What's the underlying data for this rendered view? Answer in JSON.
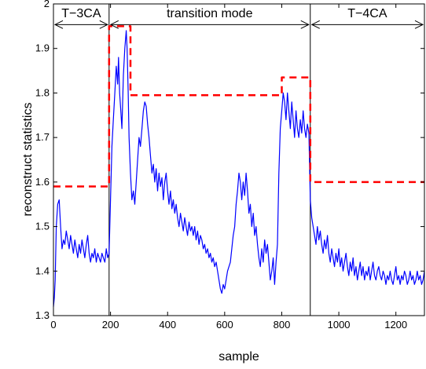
{
  "chart_data": {
    "type": "line",
    "title": "",
    "xlabel": "sample",
    "ylabel": "reconstruct statistics",
    "xlim": [
      0,
      1300
    ],
    "ylim": [
      1.3,
      2.0
    ],
    "xticks": [
      0,
      200,
      400,
      600,
      800,
      1000,
      1200
    ],
    "yticks": [
      1.3,
      1.4,
      1.5,
      1.6,
      1.7,
      1.8,
      1.9,
      2.0
    ],
    "xtick_labels": [
      "0",
      "200",
      "400",
      "600",
      "800",
      "1000",
      "1200"
    ],
    "ytick_labels": [
      "1.3",
      "1.4",
      "1.5",
      "1.6",
      "1.7",
      "1.8",
      "1.9",
      "2"
    ],
    "grid": false,
    "regions": [
      {
        "label": "T−3CA",
        "start": 0,
        "end": 195
      },
      {
        "label": "transition mode",
        "start": 195,
        "end": 900
      },
      {
        "label": "T−4CA",
        "start": 900,
        "end": 1300
      }
    ],
    "region_boundaries": [
      195,
      900
    ],
    "series": [
      {
        "style": "solid",
        "color": "#0000ff",
        "points": [
          [
            0,
            1.32
          ],
          [
            3,
            1.34
          ],
          [
            6,
            1.38
          ],
          [
            10,
            1.5
          ],
          [
            15,
            1.55
          ],
          [
            20,
            1.56
          ],
          [
            25,
            1.5
          ],
          [
            30,
            1.45
          ],
          [
            35,
            1.47
          ],
          [
            40,
            1.46
          ],
          [
            45,
            1.49
          ],
          [
            50,
            1.47
          ],
          [
            55,
            1.45
          ],
          [
            60,
            1.48
          ],
          [
            65,
            1.46
          ],
          [
            70,
            1.44
          ],
          [
            75,
            1.47
          ],
          [
            80,
            1.45
          ],
          [
            85,
            1.43
          ],
          [
            90,
            1.46
          ],
          [
            95,
            1.44
          ],
          [
            100,
            1.47
          ],
          [
            105,
            1.45
          ],
          [
            110,
            1.43
          ],
          [
            115,
            1.46
          ],
          [
            120,
            1.48
          ],
          [
            125,
            1.44
          ],
          [
            130,
            1.42
          ],
          [
            135,
            1.44
          ],
          [
            140,
            1.43
          ],
          [
            145,
            1.45
          ],
          [
            150,
            1.42
          ],
          [
            155,
            1.44
          ],
          [
            160,
            1.43
          ],
          [
            165,
            1.42
          ],
          [
            170,
            1.44
          ],
          [
            175,
            1.43
          ],
          [
            180,
            1.42
          ],
          [
            185,
            1.45
          ],
          [
            190,
            1.43
          ],
          [
            195,
            1.44
          ],
          [
            200,
            1.56
          ],
          [
            205,
            1.68
          ],
          [
            210,
            1.74
          ],
          [
            215,
            1.8
          ],
          [
            220,
            1.86
          ],
          [
            225,
            1.82
          ],
          [
            228,
            1.88
          ],
          [
            232,
            1.8
          ],
          [
            236,
            1.76
          ],
          [
            240,
            1.72
          ],
          [
            245,
            1.84
          ],
          [
            250,
            1.9
          ],
          [
            255,
            1.94
          ],
          [
            258,
            1.9
          ],
          [
            262,
            1.8
          ],
          [
            265,
            1.7
          ],
          [
            270,
            1.62
          ],
          [
            275,
            1.56
          ],
          [
            280,
            1.58
          ],
          [
            285,
            1.55
          ],
          [
            290,
            1.6
          ],
          [
            295,
            1.65
          ],
          [
            300,
            1.7
          ],
          [
            305,
            1.68
          ],
          [
            310,
            1.72
          ],
          [
            315,
            1.76
          ],
          [
            320,
            1.78
          ],
          [
            325,
            1.77
          ],
          [
            330,
            1.73
          ],
          [
            335,
            1.7
          ],
          [
            340,
            1.66
          ],
          [
            345,
            1.62
          ],
          [
            350,
            1.64
          ],
          [
            355,
            1.6
          ],
          [
            360,
            1.63
          ],
          [
            365,
            1.58
          ],
          [
            370,
            1.62
          ],
          [
            375,
            1.59
          ],
          [
            380,
            1.61
          ],
          [
            385,
            1.56
          ],
          [
            390,
            1.6
          ],
          [
            395,
            1.62
          ],
          [
            400,
            1.58
          ],
          [
            405,
            1.55
          ],
          [
            410,
            1.58
          ],
          [
            415,
            1.54
          ],
          [
            420,
            1.56
          ],
          [
            425,
            1.53
          ],
          [
            430,
            1.55
          ],
          [
            435,
            1.52
          ],
          [
            440,
            1.5
          ],
          [
            445,
            1.53
          ],
          [
            450,
            1.51
          ],
          [
            455,
            1.49
          ],
          [
            460,
            1.52
          ],
          [
            465,
            1.5
          ],
          [
            470,
            1.48
          ],
          [
            475,
            1.51
          ],
          [
            480,
            1.49
          ],
          [
            485,
            1.5
          ],
          [
            490,
            1.48
          ],
          [
            495,
            1.5
          ],
          [
            500,
            1.47
          ],
          [
            505,
            1.49
          ],
          [
            510,
            1.46
          ],
          [
            515,
            1.48
          ],
          [
            520,
            1.47
          ],
          [
            525,
            1.45
          ],
          [
            530,
            1.46
          ],
          [
            535,
            1.44
          ],
          [
            540,
            1.45
          ],
          [
            545,
            1.43
          ],
          [
            550,
            1.44
          ],
          [
            555,
            1.42
          ],
          [
            560,
            1.43
          ],
          [
            565,
            1.41
          ],
          [
            570,
            1.42
          ],
          [
            575,
            1.4
          ],
          [
            580,
            1.38
          ],
          [
            585,
            1.36
          ],
          [
            590,
            1.35
          ],
          [
            595,
            1.37
          ],
          [
            600,
            1.36
          ],
          [
            605,
            1.38
          ],
          [
            610,
            1.4
          ],
          [
            615,
            1.41
          ],
          [
            620,
            1.42
          ],
          [
            625,
            1.45
          ],
          [
            630,
            1.48
          ],
          [
            635,
            1.5
          ],
          [
            640,
            1.55
          ],
          [
            645,
            1.58
          ],
          [
            650,
            1.62
          ],
          [
            655,
            1.6
          ],
          [
            660,
            1.56
          ],
          [
            665,
            1.6
          ],
          [
            670,
            1.57
          ],
          [
            675,
            1.62
          ],
          [
            680,
            1.58
          ],
          [
            685,
            1.53
          ],
          [
            690,
            1.55
          ],
          [
            695,
            1.5
          ],
          [
            700,
            1.53
          ],
          [
            705,
            1.48
          ],
          [
            710,
            1.5
          ],
          [
            715,
            1.46
          ],
          [
            720,
            1.43
          ],
          [
            725,
            1.41
          ],
          [
            730,
            1.45
          ],
          [
            735,
            1.42
          ],
          [
            740,
            1.47
          ],
          [
            745,
            1.44
          ],
          [
            750,
            1.46
          ],
          [
            755,
            1.42
          ],
          [
            760,
            1.38
          ],
          [
            765,
            1.4
          ],
          [
            770,
            1.43
          ],
          [
            775,
            1.37
          ],
          [
            780,
            1.42
          ],
          [
            785,
            1.46
          ],
          [
            790,
            1.62
          ],
          [
            795,
            1.72
          ],
          [
            800,
            1.76
          ],
          [
            805,
            1.8
          ],
          [
            810,
            1.78
          ],
          [
            815,
            1.74
          ],
          [
            820,
            1.8
          ],
          [
            825,
            1.76
          ],
          [
            830,
            1.72
          ],
          [
            835,
            1.78
          ],
          [
            840,
            1.74
          ],
          [
            845,
            1.7
          ],
          [
            850,
            1.76
          ],
          [
            855,
            1.72
          ],
          [
            860,
            1.7
          ],
          [
            865,
            1.74
          ],
          [
            870,
            1.71
          ],
          [
            875,
            1.76
          ],
          [
            880,
            1.72
          ],
          [
            885,
            1.7
          ],
          [
            890,
            1.73
          ],
          [
            895,
            1.71
          ],
          [
            900,
            1.56
          ],
          [
            905,
            1.52
          ],
          [
            910,
            1.5
          ],
          [
            915,
            1.48
          ],
          [
            920,
            1.46
          ],
          [
            925,
            1.5
          ],
          [
            930,
            1.47
          ],
          [
            935,
            1.49
          ],
          [
            940,
            1.46
          ],
          [
            945,
            1.44
          ],
          [
            950,
            1.47
          ],
          [
            955,
            1.45
          ],
          [
            960,
            1.48
          ],
          [
            965,
            1.44
          ],
          [
            970,
            1.42
          ],
          [
            975,
            1.45
          ],
          [
            980,
            1.43
          ],
          [
            985,
            1.41
          ],
          [
            990,
            1.44
          ],
          [
            995,
            1.42
          ],
          [
            1000,
            1.45
          ],
          [
            1005,
            1.41
          ],
          [
            1010,
            1.43
          ],
          [
            1015,
            1.4
          ],
          [
            1020,
            1.42
          ],
          [
            1025,
            1.44
          ],
          [
            1030,
            1.41
          ],
          [
            1035,
            1.39
          ],
          [
            1040,
            1.42
          ],
          [
            1045,
            1.4
          ],
          [
            1050,
            1.43
          ],
          [
            1055,
            1.39
          ],
          [
            1060,
            1.41
          ],
          [
            1065,
            1.38
          ],
          [
            1070,
            1.4
          ],
          [
            1075,
            1.42
          ],
          [
            1080,
            1.39
          ],
          [
            1085,
            1.41
          ],
          [
            1090,
            1.38
          ],
          [
            1095,
            1.4
          ],
          [
            1100,
            1.39
          ],
          [
            1105,
            1.41
          ],
          [
            1110,
            1.38
          ],
          [
            1115,
            1.4
          ],
          [
            1120,
            1.42
          ],
          [
            1125,
            1.39
          ],
          [
            1130,
            1.38
          ],
          [
            1135,
            1.4
          ],
          [
            1140,
            1.41
          ],
          [
            1145,
            1.39
          ],
          [
            1150,
            1.38
          ],
          [
            1155,
            1.4
          ],
          [
            1160,
            1.39
          ],
          [
            1165,
            1.37
          ],
          [
            1170,
            1.39
          ],
          [
            1175,
            1.38
          ],
          [
            1180,
            1.4
          ],
          [
            1185,
            1.38
          ],
          [
            1190,
            1.37
          ],
          [
            1195,
            1.39
          ],
          [
            1200,
            1.41
          ],
          [
            1205,
            1.38
          ],
          [
            1210,
            1.39
          ],
          [
            1215,
            1.37
          ],
          [
            1220,
            1.39
          ],
          [
            1225,
            1.38
          ],
          [
            1230,
            1.4
          ],
          [
            1235,
            1.39
          ],
          [
            1240,
            1.37
          ],
          [
            1245,
            1.38
          ],
          [
            1250,
            1.4
          ],
          [
            1255,
            1.38
          ],
          [
            1260,
            1.39
          ],
          [
            1265,
            1.37
          ],
          [
            1270,
            1.38
          ],
          [
            1275,
            1.4
          ],
          [
            1280,
            1.38
          ],
          [
            1285,
            1.39
          ],
          [
            1290,
            1.37
          ],
          [
            1295,
            1.38
          ],
          [
            1300,
            1.4
          ]
        ]
      },
      {
        "style": "dashed",
        "color": "#ff0000",
        "points": [
          [
            0,
            1.59
          ],
          [
            195,
            1.59
          ],
          [
            195,
            1.95
          ],
          [
            270,
            1.95
          ],
          [
            270,
            1.795
          ],
          [
            800,
            1.795
          ],
          [
            800,
            1.835
          ],
          [
            900,
            1.835
          ],
          [
            900,
            1.6
          ],
          [
            1300,
            1.6
          ]
        ]
      }
    ]
  }
}
